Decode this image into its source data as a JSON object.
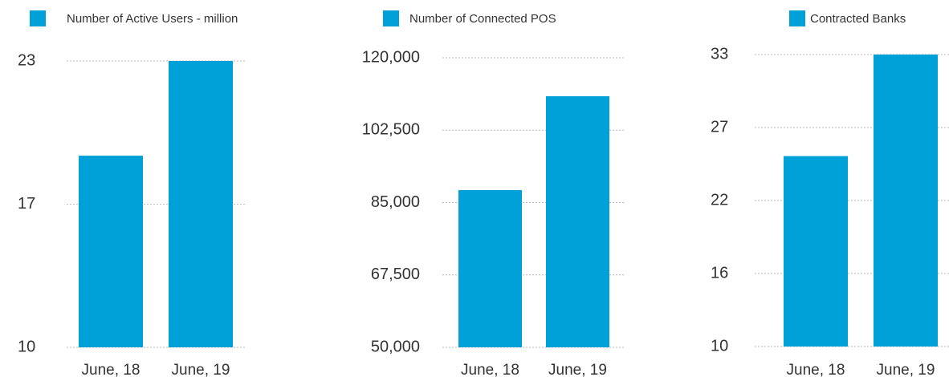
{
  "chart_data": [
    {
      "type": "bar",
      "categories": [
        "June, 18",
        "June, 19"
      ],
      "series": [
        {
          "name": "Number of Active Users - million",
          "color": "#00a0d8",
          "values": [
            18.7,
            23
          ]
        }
      ],
      "ylim": [
        10,
        23
      ],
      "yticks": [
        10,
        {
          "value": 16.5,
          "label": "17"
        },
        23
      ],
      "grid": true
    },
    {
      "type": "bar",
      "categories": [
        "June, 18",
        "June, 19"
      ],
      "series": [
        {
          "name": "Number of Connected POS",
          "color": "#00a0d8",
          "values": [
            88000,
            110700
          ]
        }
      ],
      "ylim": [
        50000,
        120000
      ],
      "yticks": [
        {
          "value": 50000,
          "label": "50,000"
        },
        {
          "value": 67500,
          "label": "67,500"
        },
        {
          "value": 85000,
          "label": "85,000"
        },
        {
          "value": 102500,
          "label": "102,500"
        },
        {
          "value": 120000,
          "label": "120,000"
        }
      ],
      "grid": true
    },
    {
      "type": "bar",
      "categories": [
        "June, 18",
        "June, 19"
      ],
      "series": [
        {
          "name": "Contracted Banks",
          "color": "#00a0d8",
          "values": [
            25,
            33
          ]
        }
      ],
      "ylim": [
        10,
        33
      ],
      "yticks": [
        10,
        {
          "value": 15.75,
          "label": "16"
        },
        {
          "value": 21.5,
          "label": "22"
        },
        {
          "value": 27.25,
          "label": "27"
        },
        33
      ],
      "grid": true
    }
  ]
}
